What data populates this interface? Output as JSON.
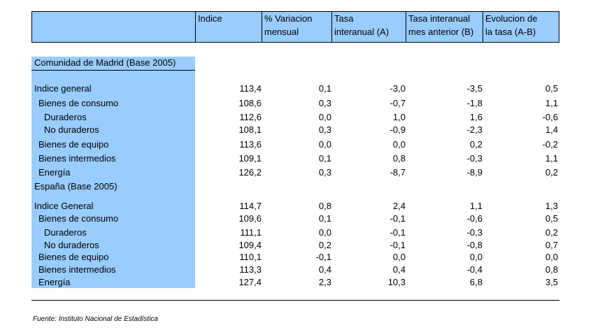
{
  "header": {
    "col1": [
      "Indice",
      ""
    ],
    "col2": [
      "% Variacion",
      "mensual"
    ],
    "col3": [
      "Tasa",
      "interanual (A)"
    ],
    "col4": [
      "Tasa interanual",
      "mes anterior (B)"
    ],
    "col5": [
      "Evolucion de",
      "la tasa (A-B)"
    ]
  },
  "madrid": {
    "title": "Comunidad de Madrid (Base 2005)",
    "rows": [
      {
        "label": "Indice general",
        "v": [
          "113,4",
          "0,1",
          "-3,0",
          "-3,5",
          "0,5"
        ]
      },
      {
        "label": "Bienes de consumo",
        "v": [
          "108,6",
          "0,3",
          "-0,7",
          "-1,8",
          "1,1"
        ]
      },
      {
        "label": "Duraderos",
        "v": [
          "112,6",
          "0,0",
          "1,0",
          "1,6",
          "-0,6"
        ]
      },
      {
        "label": "No duraderos",
        "v": [
          "108,1",
          "0,3",
          "-0,9",
          "-2,3",
          "1,4"
        ]
      },
      {
        "label": "Bienes de equipo",
        "v": [
          "113,6",
          "0,0",
          "0,0",
          "0,2",
          "-0,2"
        ]
      },
      {
        "label": "Bienes intermedios",
        "v": [
          "109,1",
          "0,1",
          "0,8",
          "-0,3",
          "1,1"
        ]
      },
      {
        "label": "Energía",
        "v": [
          "126,2",
          "0,3",
          "-8,7",
          "-8,9",
          "0,2"
        ]
      }
    ]
  },
  "spain": {
    "title": "España (Base 2005)",
    "rows": [
      {
        "label": "Indice General",
        "v": [
          "114,7",
          "0,8",
          "2,4",
          "1,1",
          "1,3"
        ]
      },
      {
        "label": "Bienes de consumo",
        "v": [
          "109,6",
          "0,1",
          "-0,1",
          "-0,6",
          "0,5"
        ]
      },
      {
        "label": "Duraderos",
        "v": [
          "111,1",
          "0,0",
          "-0,1",
          "-0,3",
          "0,2"
        ]
      },
      {
        "label": "No duraderos",
        "v": [
          "109,4",
          "0,2",
          "-0,1",
          "-0,8",
          "0,7"
        ]
      },
      {
        "label": "Bienes de equipo",
        "v": [
          "110,1",
          "-0,1",
          "0,0",
          "0,0",
          "0,0"
        ]
      },
      {
        "label": "Bienes intermedios",
        "v": [
          "113,3",
          "0,4",
          "0,4",
          "-0,4",
          "0,8"
        ]
      },
      {
        "label": "Energía",
        "v": [
          "127,4",
          "2,3",
          "10,3",
          "6,8",
          "3,5"
        ]
      }
    ]
  },
  "footer": "Fuente: Instituto Nacional de Estadística",
  "colors": {
    "highlight": "#99ccff",
    "rule": "#000000"
  }
}
